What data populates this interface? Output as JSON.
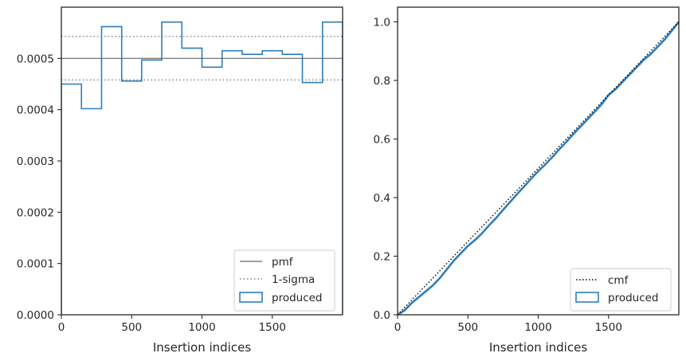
{
  "chart_data": [
    {
      "type": "histogram",
      "xlabel": "Insertion indices",
      "ylabel": "",
      "xlim": [
        0,
        2000
      ],
      "ylim": [
        0,
        0.0006
      ],
      "xticks": [
        0,
        500,
        1000,
        1500
      ],
      "yticks": [
        0,
        0.0001,
        0.0002,
        0.0003,
        0.0004,
        0.0005
      ],
      "ytick_labels": [
        "0.0000",
        "0.0001",
        "0.0002",
        "0.0003",
        "0.0004",
        "0.0005"
      ],
      "pmf": 0.0005,
      "sigma_band": [
        0.000458,
        0.000543
      ],
      "bin_edges": [
        0,
        143,
        286,
        429,
        571,
        714,
        857,
        1000,
        1143,
        1286,
        1429,
        1571,
        1714,
        1857,
        2000
      ],
      "values": [
        0.00045,
        0.000402,
        0.000562,
        0.000456,
        0.000497,
        0.000571,
        0.00052,
        0.000483,
        0.000515,
        0.000508,
        0.000515,
        0.000508,
        0.000453,
        0.000571
      ],
      "grid": false,
      "legend": {
        "position": "lower-right",
        "entries": [
          {
            "label": "pmf",
            "style": "solid-gray"
          },
          {
            "label": "1-sigma",
            "style": "dotted-gray"
          },
          {
            "label": "produced",
            "style": "step-blue"
          }
        ]
      },
      "colors": {
        "produced": "#2e7ebb",
        "pmf": "#808080",
        "sigma": "#808080"
      }
    },
    {
      "type": "line",
      "xlabel": "Insertion indices",
      "ylabel": "",
      "xlim": [
        0,
        2000
      ],
      "ylim": [
        0,
        1.05
      ],
      "xticks": [
        0,
        500,
        1000,
        1500
      ],
      "yticks": [
        0,
        0.2,
        0.4,
        0.6,
        0.8,
        1.0
      ],
      "ytick_labels": [
        "0.0",
        "0.2",
        "0.4",
        "0.6",
        "0.8",
        "1.0"
      ],
      "series": [
        {
          "name": "cmf",
          "x": [
            0,
            2000
          ],
          "y": [
            0,
            1
          ]
        },
        {
          "name": "produced",
          "x": [
            0,
            50,
            100,
            150,
            200,
            250,
            300,
            350,
            400,
            450,
            500,
            550,
            600,
            650,
            700,
            750,
            800,
            850,
            900,
            950,
            1000,
            1050,
            1100,
            1150,
            1200,
            1250,
            1300,
            1350,
            1400,
            1450,
            1500,
            1550,
            1600,
            1650,
            1700,
            1750,
            1800,
            1850,
            1900,
            1950,
            2000
          ],
          "y": [
            0,
            0.015,
            0.04,
            0.06,
            0.08,
            0.1,
            0.125,
            0.155,
            0.185,
            0.21,
            0.235,
            0.255,
            0.278,
            0.305,
            0.33,
            0.358,
            0.385,
            0.412,
            0.438,
            0.465,
            0.49,
            0.513,
            0.538,
            0.565,
            0.59,
            0.617,
            0.642,
            0.667,
            0.692,
            0.718,
            0.75,
            0.77,
            0.795,
            0.82,
            0.845,
            0.87,
            0.89,
            0.915,
            0.94,
            0.97,
            1.0
          ]
        }
      ],
      "grid": false,
      "legend": {
        "position": "lower-right",
        "entries": [
          {
            "label": "cmf",
            "style": "dotted-black"
          },
          {
            "label": "produced",
            "style": "step-blue"
          }
        ]
      },
      "colors": {
        "produced": "#2e7ebb",
        "cmf": "#000000"
      }
    }
  ]
}
